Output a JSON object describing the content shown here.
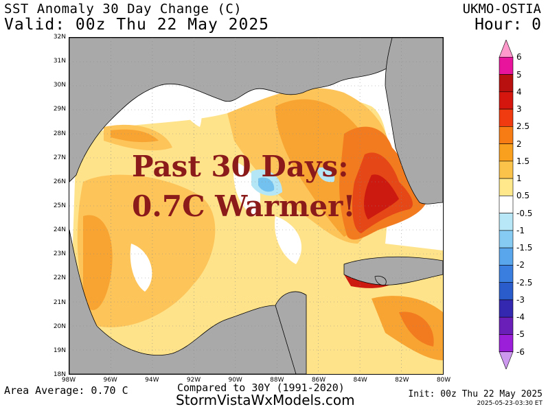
{
  "header": {
    "title": "SST Anomaly 30 Day Change (C)",
    "valid": "Valid: 00z Thu 22 May 2025",
    "model": "UKMO-OSTIA",
    "hour": "Hour: 0"
  },
  "map": {
    "lat_labels": [
      "32N",
      "31N",
      "30N",
      "29N",
      "28N",
      "27N",
      "26N",
      "25N",
      "24N",
      "23N",
      "22N",
      "21N",
      "20N",
      "19N",
      "18N"
    ],
    "lon_labels": [
      "98W",
      "96W",
      "94W",
      "92W",
      "90W",
      "88W",
      "86W",
      "84W",
      "82W",
      "80W"
    ],
    "overlay_line1": "Past 30 Days:",
    "overlay_line2": "0.7C Warmer!",
    "colors": {
      "land": "#a9a9a9",
      "neutral": "#ffffff",
      "warm_0_5": "#ffe38a",
      "warm_1": "#fdc45a",
      "warm_1_5": "#f8a432",
      "warm_2": "#f27b1f",
      "warm_2_5": "#e64716",
      "warm_3": "#cc1a10",
      "cool_0_5": "#b5e6f5",
      "cool_1": "#73c1ee"
    }
  },
  "colorbar": {
    "labels": [
      "6",
      "5",
      "4",
      "3",
      "2.5",
      "2",
      "1.5",
      "1",
      "0.5",
      "-0.5",
      "-1",
      "-1.5",
      "-2",
      "-2.5",
      "-3",
      "-4",
      "-5",
      "-6"
    ],
    "colors": [
      "#ff99cc",
      "#e8149b",
      "#b80f0f",
      "#d4160f",
      "#ef3b0f",
      "#f77c14",
      "#faa01f",
      "#fcc34a",
      "#ffe88c",
      "#ffffff",
      "#b8e8f7",
      "#86cbf2",
      "#5aa6ec",
      "#3a7fe0",
      "#2a5ccc",
      "#3427b0",
      "#6a1fb8",
      "#9b1fd8",
      "#cc99ee"
    ]
  },
  "footer": {
    "area_average": "Area Average: 0.70 C",
    "compared": "Compared to 30Y (1991-2020)",
    "site": "StormVistaWxModels.com",
    "init": "Init: 00z Thu 22 May 2025",
    "stamp": "2025-05-23-03:30 ET"
  }
}
